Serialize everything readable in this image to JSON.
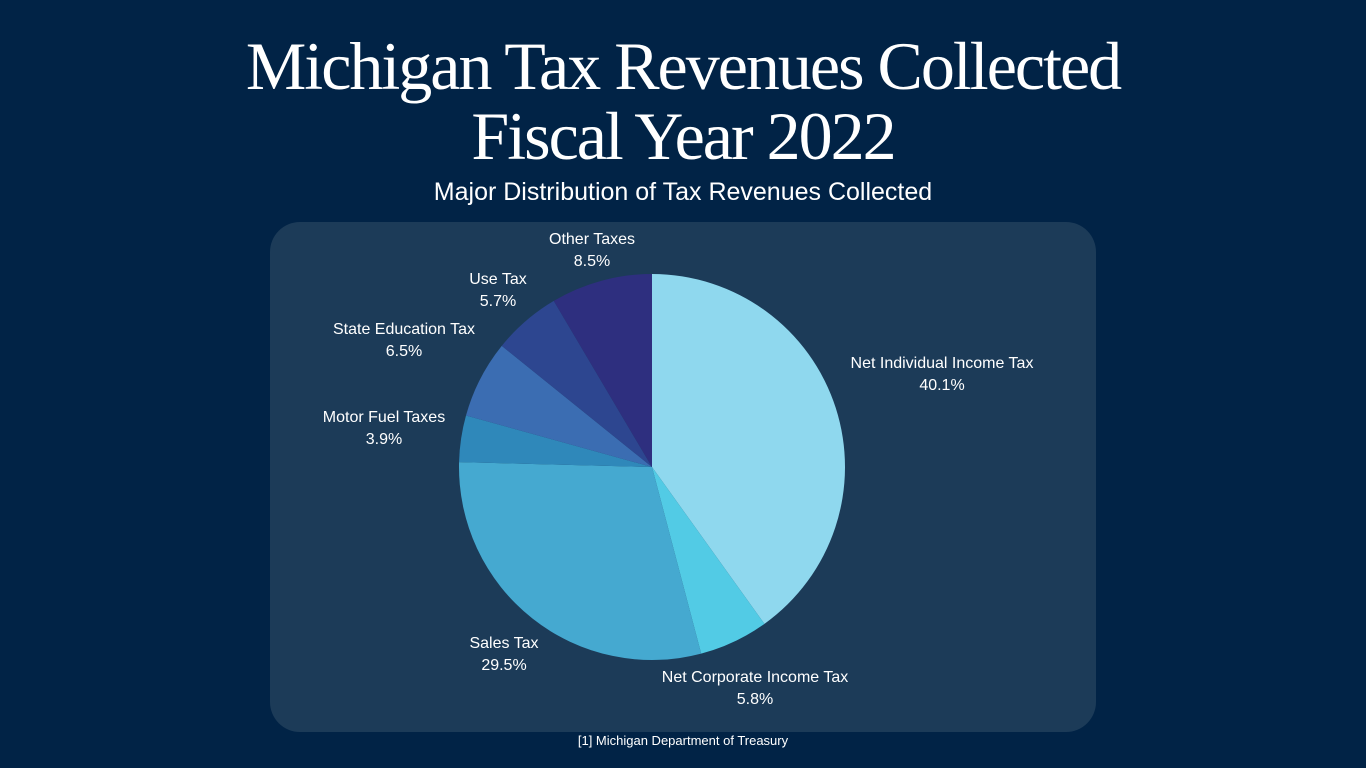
{
  "chart_data": {
    "type": "pie",
    "title_lines": [
      "Michigan Tax Revenues Collected",
      "Fiscal Year 2022"
    ],
    "subtitle": "Major Distribution of Tax Revenues Collected",
    "slices": [
      {
        "label": "Net Individual Income Tax",
        "value": 40.1,
        "value_text": "40.1%",
        "color": "#8fd8ee"
      },
      {
        "label": "Net Corporate Income Tax",
        "value": 5.8,
        "value_text": "5.8%",
        "color": "#52cbe5"
      },
      {
        "label": "Sales Tax",
        "value": 29.5,
        "value_text": "29.5%",
        "color": "#45a9d0"
      },
      {
        "label": "Motor Fuel Taxes",
        "value": 3.9,
        "value_text": "3.9%",
        "color": "#2f88ba"
      },
      {
        "label": "State Education Tax",
        "value": 6.5,
        "value_text": "6.5%",
        "color": "#3b6db2"
      },
      {
        "label": "Use Tax",
        "value": 5.7,
        "value_text": "5.7%",
        "color": "#2d4690"
      },
      {
        "label": "Other Taxes",
        "value": 8.5,
        "value_text": "8.5%",
        "color": "#2e2f7f"
      }
    ],
    "start_angle": "top",
    "direction": "clockwise",
    "legend": "none",
    "labels": "outside"
  },
  "source_note": "[1] Michigan Department of Treasury",
  "colors": {
    "background": "#012346",
    "panel": "#1c3b58",
    "text": "#ffffff"
  }
}
